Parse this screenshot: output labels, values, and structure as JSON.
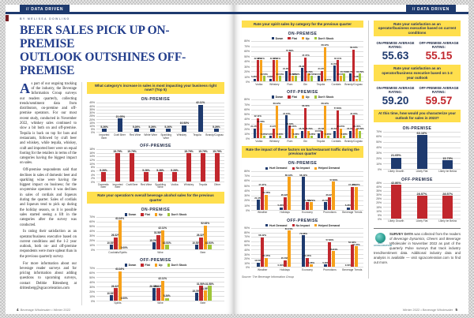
{
  "header_left": {
    "tab": "// DATA DRIVEN",
    "byline": "BY MELISSA DOWLING"
  },
  "header_right": {
    "tab": "// DATA DRIVEN"
  },
  "article": {
    "headline_l1": "BEER SALES PICK UP ON-PREMISE",
    "headline_l2": "OUTLOOK OUTSHINES OFF-PREMISE",
    "dropcap": "A",
    "p1": "s part of our ongoing tracking of the industry, the Beverage Information Group surveys our readers quarterly, collecting trends/sentiment data from distributors, on-premise and off-premise operators. For our most recent study, conducted in November 2022, whiskey sales continued to slow a bit both on and off-premise. Tequila is back on top for bars and restaurants, followed by craft beer and whiskey, while tequila, whiskey, craft and imported beer were on equal footing for the retailers in terms of the categories having the biggest impact on sales.",
    "p2": "Off-premise respondents said that declines in sales of domestic beer and sparkling wine were having the biggest impact on business; for the on-premise operators it was declines in sales of cordials and liqueurs during the quarter. Sales of cordials and liqueurs tend to pick up during the holiday season, so it is possible sales started seeing a lift in the categories after the survey was conducted.",
    "p3": "In rating their satisfaction as an operator/business executive based on current conditions and the 1-2 year outlook, both on- and off-premise respondents were more upbeat than in the previous quarterly survey.",
    "p4": "For more information about our beverage reader surveys and for pricing information about adding questions to upcoming surveys, contact Debbie Rittenberg at drittenberg@sgcacceleration.com"
  },
  "footer_left": {
    "page": "4",
    "text": "Beverage Wholesaler • Winter 2022"
  },
  "footer_right": {
    "text": "Winter 2022 • Beverage Wholesaler",
    "page": "5"
  },
  "source_note": "Source: The Beverage Information Group",
  "sidebar": {
    "sat_current": {
      "banner": "Rate your satisfaction as an operator/business executive based on current conditions",
      "on_label": "ON-PREMISE AVERAGE RATING:",
      "on_value": "55.63",
      "off_label": "OFF-PREMISE AVERAGE RATING:",
      "off_value": "55.15"
    },
    "sat_outlook": {
      "banner": "Rate your satisfaction as an operator/business executive based on 1-2 year outlook",
      "on_label": "ON-PREMISE AVERAGE RATING:",
      "on_value": "59.20",
      "off_label": "OFF-PREMISE AVERAGE RATING:",
      "off_value": "59.57"
    },
    "outlook_banner": "At this time, how would you characterize your outlook for sales in 2023?",
    "note": {
      "bold": "SURVEY DATA",
      "part1": " was collected from the readers of ",
      "italic": "Beverage Dynamics, Cheers and Beverage Wholesaler",
      "part2": " in November 2022 as part of the quarterly Pulse surveys that track industry trend/sentiment data. Additional industry data and analysis is available — visit sgcacceleration.com to find out more.",
      "logo_label": "SGC ACCELERATION"
    }
  },
  "chart_data": [
    {
      "id": "category-increase-on",
      "type": "bar",
      "banner": "What category's increase in sales is most impacting your business right now? (Top 5)",
      "title": "ON-PREMISE",
      "color": "#1e3a6e",
      "ylim": [
        0,
        45
      ],
      "ytick": 5,
      "categories": [
        "Imported Beer",
        "Craft Beer",
        "Red Wine",
        "White Wine",
        "Sparkling Wine",
        "Whiskey",
        "Tequila",
        "Brandy/Cognac"
      ],
      "values": [
        5.26,
        21.05,
        5.26,
        5.26,
        5.26,
        10.53,
        42.11,
        5.26
      ]
    },
    {
      "id": "category-increase-off",
      "type": "bar",
      "title": "OFF-PREMISE",
      "color": "#c1272d",
      "ylim": [
        0,
        18
      ],
      "ytick": 2,
      "categories": [
        "Domestic Beer",
        "Imported Beer",
        "Craft Beer",
        "Red Wine",
        "Sparkling Wine",
        "Vodka",
        "Whiskey",
        "Tequila",
        "Other"
      ],
      "values": [
        5.26,
        15.79,
        15.79,
        5.26,
        5.26,
        5.26,
        15.79,
        15.79,
        15.79
      ]
    },
    {
      "id": "overall-sales-on",
      "type": "grouped_bar",
      "banner": "Rate your operation's overall beverage alcohol sales for the previous quarter",
      "title": "ON-PREMISE",
      "ylim": [
        0,
        70
      ],
      "ytick": 10,
      "categories": [
        "Cocktails/Spirits",
        "Wine",
        "Beer"
      ],
      "series": [
        {
          "name": "Down",
          "color": "#1e3a6e",
          "values": [
            10.53,
            15.79,
            10.53
          ]
        },
        {
          "name": "Flat",
          "color": "#c1272d",
          "values": [
            26.32,
            31.58,
            26.32
          ]
        },
        {
          "name": "Up",
          "color": "#f7a11a",
          "values": [
            63.16,
            42.11,
            52.63
          ]
        },
        {
          "name": "Don't Stock",
          "color": "#9fc63b",
          "values": [
            0.0,
            10.53,
            10.53
          ]
        }
      ]
    },
    {
      "id": "overall-sales-off",
      "type": "grouped_bar",
      "title": "OFF-PREMISE",
      "ylim": [
        0,
        70
      ],
      "ytick": 10,
      "categories": [
        "Spirits",
        "Wine",
        "Beer"
      ],
      "series": [
        {
          "name": "Down",
          "color": "#1e3a6e",
          "values": [
            10.53,
            26.32,
            15.79
          ]
        },
        {
          "name": "Flat",
          "color": "#c1272d",
          "values": [
            26.32,
            26.32,
            31.58
          ]
        },
        {
          "name": "Up",
          "color": "#f7a11a",
          "values": [
            63.16,
            42.11,
            21.05
          ]
        },
        {
          "name": "Don't Stock",
          "color": "#9fc63b",
          "values": [
            0.0,
            5.26,
            31.58
          ]
        }
      ]
    },
    {
      "id": "spirit-sales-on",
      "type": "grouped_bar",
      "banner": "Rate your spirit sales by category for the previous quarter",
      "title": "ON-PREMISE",
      "ylim": [
        0,
        80
      ],
      "ytick": 10,
      "categories": [
        "Vodka",
        "Whiskey",
        "Rum",
        "Gin",
        "Tequila",
        "Cordials",
        "Brandy/Cognac"
      ],
      "series": [
        {
          "name": "Down",
          "color": "#1e3a6e",
          "values": [
            5.26,
            5.26,
            21.05,
            26.32,
            10.53,
            31.58,
            15.79
          ]
        },
        {
          "name": "Flat",
          "color": "#c1272d",
          "values": [
            42.11,
            42.11,
            57.89,
            47.37,
            21.05,
            42.11,
            63.16
          ]
        },
        {
          "name": "Up",
          "color": "#f7a11a",
          "values": [
            42.11,
            42.11,
            10.53,
            15.79,
            68.42,
            10.53,
            5.26
          ]
        },
        {
          "name": "Don't Stock",
          "color": "#9fc63b",
          "values": [
            10.53,
            10.53,
            10.53,
            10.53,
            0.0,
            15.79,
            15.79
          ]
        }
      ]
    },
    {
      "id": "spirit-sales-off",
      "type": "grouped_bar",
      "title": "OFF-PREMISE",
      "ylim": [
        0,
        80
      ],
      "ytick": 10,
      "categories": [
        "Vodka",
        "Whiskey",
        "Rum",
        "Gin",
        "Tequila",
        "Cordials",
        "Brandy/Cognac"
      ],
      "series": [
        {
          "name": "Down",
          "color": "#1e3a6e",
          "values": [
            21.05,
            5.26,
            47.37,
            15.79,
            10.53,
            15.79,
            15.79
          ]
        },
        {
          "name": "Flat",
          "color": "#c1272d",
          "values": [
            42.11,
            21.05,
            26.32,
            63.16,
            15.79,
            57.89,
            47.37
          ]
        },
        {
          "name": "Up",
          "color": "#f7a11a",
          "values": [
            31.58,
            68.42,
            21.05,
            15.79,
            68.42,
            21.05,
            21.05
          ]
        },
        {
          "name": "Don't Stock",
          "color": "#9fc63b",
          "values": [
            5.26,
            5.26,
            5.26,
            5.26,
            5.26,
            5.26,
            15.79
          ]
        }
      ]
    },
    {
      "id": "factors-on",
      "type": "grouped_bar",
      "banner": "Rate the impact of these factors on bar/restaurant traffic during the previous quarter",
      "title": "ON-PREMISE",
      "ylim": [
        0,
        80
      ],
      "ytick": 10,
      "categories": [
        "Weather",
        "Holidays",
        "Economy",
        "Promotions",
        "Beverage Trends"
      ],
      "series": [
        {
          "name": "Hurt Demand",
          "color": "#1e3a6e",
          "values": [
            21.05,
            5.26,
            68.42,
            15.79,
            5.26
          ]
        },
        {
          "name": "No Impact",
          "color": "#c1272d",
          "values": [
            47.37,
            26.32,
            15.79,
            26.32,
            47.37
          ]
        },
        {
          "name": "Helped Demand",
          "color": "#f7a11a",
          "values": [
            31.58,
            68.42,
            15.79,
            57.89,
            47.37
          ]
        }
      ]
    },
    {
      "id": "factors-off",
      "type": "grouped_bar",
      "title": "OFF-PREMISE",
      "ylim": [
        0,
        90
      ],
      "ytick": 10,
      "categories": [
        "Weather",
        "Holidays",
        "Economy",
        "Promotions",
        "Beverage Trends"
      ],
      "series": [
        {
          "name": "Hurt Demand",
          "color": "#1e3a6e",
          "values": [
            10.53,
            0.0,
            73.68,
            5.26,
            0.0
          ]
        },
        {
          "name": "No Impact",
          "color": "#c1272d",
          "values": [
            68.42,
            15.79,
            21.05,
            57.89,
            52.63
          ]
        },
        {
          "name": "Helped Demand",
          "color": "#f7a11a",
          "values": [
            21.05,
            84.21,
            5.26,
            36.84,
            47.37
          ]
        }
      ]
    },
    {
      "id": "outlook-2023-on",
      "type": "bar",
      "title": "ON-PREMISE",
      "color": "#1e3a6e",
      "ylim": [
        0,
        70
      ],
      "ytick": 10,
      "categories": [
        "Likely Growth",
        "Likely Flat",
        "Likely be Below"
      ],
      "values": [
        21.05,
        63.16,
        15.79
      ]
    },
    {
      "id": "outlook-2023-off",
      "type": "bar",
      "title": "OFF-PREMISE",
      "color": "#c1272d",
      "ylim": [
        0,
        45
      ],
      "ytick": 5,
      "categories": [
        "Likely Growth",
        "Likely Flat",
        "Likely be Below"
      ],
      "values": [
        42.86,
        28.57,
        28.57
      ]
    }
  ]
}
